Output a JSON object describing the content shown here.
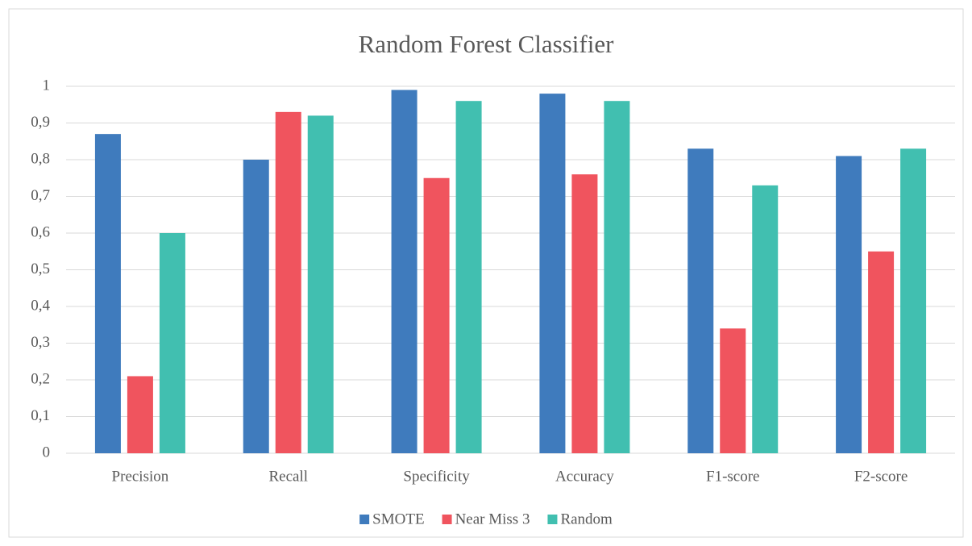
{
  "chart_data": {
    "type": "bar",
    "title": "Random Forest Classifier",
    "categories": [
      "Precision",
      "Recall",
      "Specificity",
      "Accuracy",
      "F1-score",
      "F2-score"
    ],
    "series": [
      {
        "name": "SMOTE",
        "color": "#3f7bbd",
        "values": [
          0.87,
          0.8,
          0.99,
          0.98,
          0.83,
          0.81
        ]
      },
      {
        "name": "Near Miss 3",
        "color": "#f0545e",
        "values": [
          0.21,
          0.93,
          0.75,
          0.76,
          0.34,
          0.55
        ]
      },
      {
        "name": "Random",
        "color": "#41bfb0",
        "values": [
          0.6,
          0.92,
          0.96,
          0.96,
          0.73,
          0.83
        ]
      }
    ],
    "ylim": [
      0,
      1
    ],
    "yticks": [
      0,
      {
        "value": 0.1,
        "label": "0,1"
      },
      {
        "value": 0.2,
        "label": "0,2"
      },
      {
        "value": 0.3,
        "label": "0,3"
      },
      {
        "value": 0.4,
        "label": "0,4"
      },
      {
        "value": 0.5,
        "label": "0,5"
      },
      {
        "value": 0.6,
        "label": "0,6"
      },
      {
        "value": 0.7,
        "label": "0,7"
      },
      {
        "value": 0.8,
        "label": "0,8"
      },
      {
        "value": 0.9,
        "label": "0,9"
      },
      1
    ],
    "grid": true,
    "legend": "bottom"
  }
}
